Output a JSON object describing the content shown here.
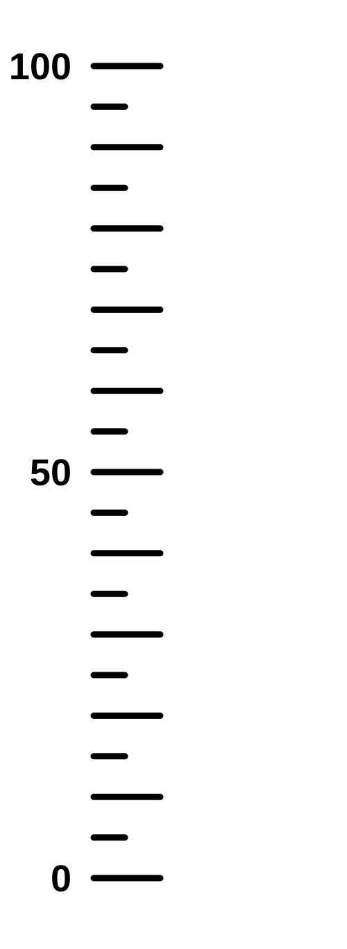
{
  "scale": {
    "min": 0,
    "max": 100,
    "major_step": 10,
    "minor_step": 5,
    "labels": [
      {
        "value": 0,
        "text": "0"
      },
      {
        "value": 50,
        "text": "50"
      },
      {
        "value": 100,
        "text": "100"
      }
    ],
    "color": "#000000"
  }
}
